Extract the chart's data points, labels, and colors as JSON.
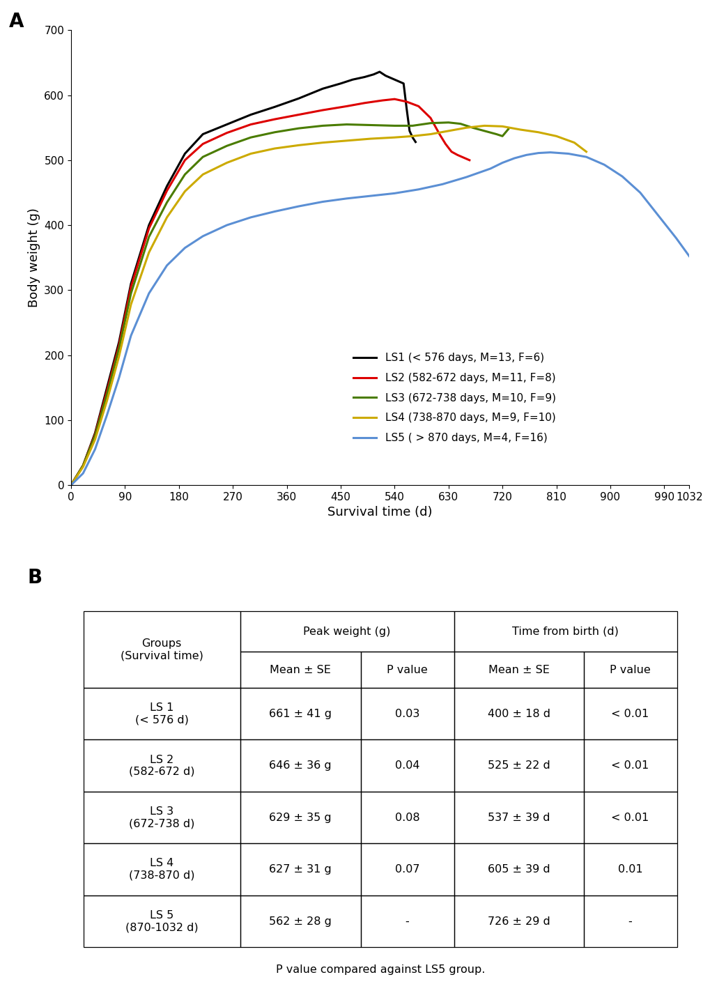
{
  "xlabel": "Survival time (d)",
  "ylabel": "Body weight (g)",
  "ylim": [
    0,
    700
  ],
  "yticks": [
    0,
    100,
    200,
    300,
    400,
    500,
    600,
    700
  ],
  "xticks": [
    0,
    90,
    180,
    270,
    360,
    450,
    540,
    630,
    720,
    810,
    900,
    990,
    1032
  ],
  "legend_entries": [
    "LS1 (< 576 days, M=13, F=6)",
    "LS2 (582-672 days, M=11, F=8)",
    "LS3 (672-738 days, M=10, F=9)",
    "LS4 (738-870 days, M=9, F=10)",
    "LS5 ( > 870 days, M=4, F=16)"
  ],
  "line_colors": [
    "#000000",
    "#dd0000",
    "#4a7c00",
    "#ccaa00",
    "#5b8fd4"
  ],
  "LS1_x": [
    0,
    20,
    40,
    60,
    80,
    100,
    130,
    160,
    190,
    220,
    260,
    300,
    340,
    380,
    420,
    450,
    470,
    490,
    505,
    515,
    525,
    535,
    545,
    555,
    560,
    565,
    570,
    575
  ],
  "LS1_y": [
    0,
    30,
    80,
    150,
    220,
    310,
    400,
    460,
    510,
    540,
    555,
    570,
    582,
    595,
    610,
    618,
    624,
    628,
    632,
    636,
    630,
    626,
    622,
    618,
    580,
    545,
    535,
    528
  ],
  "LS2_x": [
    0,
    20,
    40,
    60,
    80,
    100,
    130,
    160,
    190,
    220,
    260,
    300,
    340,
    380,
    420,
    460,
    490,
    520,
    540,
    560,
    580,
    600,
    615,
    625,
    635,
    645,
    655,
    665
  ],
  "LS2_y": [
    0,
    30,
    78,
    145,
    215,
    305,
    395,
    453,
    500,
    525,
    542,
    555,
    563,
    570,
    577,
    583,
    588,
    592,
    594,
    590,
    583,
    565,
    540,
    525,
    513,
    508,
    504,
    500
  ],
  "LS3_x": [
    0,
    20,
    40,
    60,
    80,
    100,
    130,
    160,
    190,
    220,
    260,
    300,
    340,
    380,
    420,
    460,
    500,
    540,
    570,
    600,
    630,
    650,
    670,
    690,
    710,
    720,
    730
  ],
  "LS3_y": [
    0,
    30,
    76,
    140,
    210,
    295,
    382,
    435,
    478,
    505,
    522,
    535,
    543,
    549,
    553,
    555,
    554,
    553,
    553,
    557,
    558,
    556,
    550,
    545,
    540,
    537,
    548
  ],
  "LS4_x": [
    0,
    20,
    40,
    60,
    80,
    100,
    130,
    160,
    190,
    220,
    260,
    300,
    340,
    380,
    420,
    460,
    500,
    540,
    570,
    600,
    630,
    660,
    690,
    720,
    750,
    780,
    810,
    840,
    860
  ],
  "LS4_y": [
    0,
    28,
    70,
    130,
    198,
    278,
    358,
    412,
    452,
    478,
    496,
    510,
    518,
    523,
    527,
    530,
    533,
    535,
    537,
    540,
    545,
    550,
    553,
    552,
    547,
    543,
    537,
    527,
    513
  ],
  "LS5_x": [
    0,
    20,
    40,
    60,
    80,
    100,
    130,
    160,
    190,
    220,
    260,
    300,
    340,
    380,
    420,
    460,
    500,
    540,
    580,
    620,
    660,
    700,
    720,
    740,
    760,
    780,
    800,
    830,
    860,
    890,
    920,
    950,
    980,
    1010,
    1032
  ],
  "LS5_y": [
    0,
    18,
    55,
    108,
    165,
    230,
    295,
    338,
    365,
    383,
    400,
    412,
    421,
    429,
    436,
    441,
    445,
    449,
    455,
    463,
    474,
    487,
    496,
    503,
    508,
    511,
    512,
    510,
    505,
    493,
    475,
    450,
    415,
    380,
    352
  ],
  "table_rows": [
    [
      "LS 1\n(< 576 d)",
      "661 ± 41 g",
      "0.03",
      "400 ± 18 d",
      "< 0.01"
    ],
    [
      "LS 2\n(582-672 d)",
      "646 ± 36 g",
      "0.04",
      "525 ± 22 d",
      "< 0.01"
    ],
    [
      "LS 3\n(672-738 d)",
      "629 ± 35 g",
      "0.08",
      "537 ± 39 d",
      "< 0.01"
    ],
    [
      "LS 4\n(738-870 d)",
      "627 ± 31 g",
      "0.07",
      "605 ± 39 d",
      "0.01"
    ],
    [
      "LS 5\n(870-1032 d)",
      "562 ± 28 g",
      "-",
      "726 ± 29 d",
      "-"
    ]
  ],
  "footnote": "P value compared against LS5 group.",
  "background_color": "#ffffff"
}
